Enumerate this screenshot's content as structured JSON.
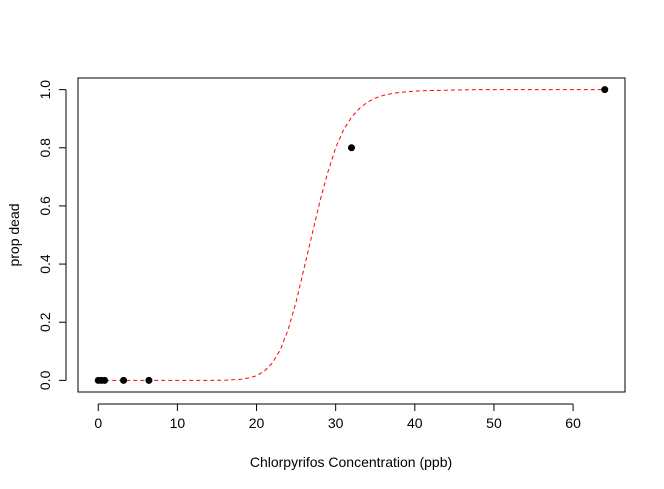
{
  "chart_data": {
    "type": "scatter",
    "title": "",
    "xlabel": "Chlorpyrifos Concentration (ppb)",
    "ylabel": "prop dead",
    "xlim": [
      -2.56,
      66.56
    ],
    "ylim": [
      -0.04,
      1.04
    ],
    "x_ticks": [
      0,
      10,
      20,
      30,
      40,
      50,
      60
    ],
    "y_ticks": [
      0.0,
      0.2,
      0.4,
      0.6,
      0.8,
      1.0
    ],
    "x_tick_labels": [
      "0",
      "10",
      "20",
      "30",
      "40",
      "50",
      "60"
    ],
    "y_tick_labels": [
      "0.0",
      "0.2",
      "0.4",
      "0.6",
      "0.8",
      "1.0"
    ],
    "grid": false,
    "legend": "none",
    "series": [
      {
        "type": "scatter",
        "color": "#000000",
        "x": [
          0,
          0.4,
          0.8,
          3.2,
          6.4,
          32,
          64
        ],
        "y": [
          0,
          0,
          0,
          0,
          0,
          0.8,
          1.0
        ]
      },
      {
        "type": "line",
        "style": "dashed",
        "color": "#ff0000",
        "x": [
          0,
          2,
          4,
          6,
          8,
          10,
          12,
          14,
          16,
          18,
          19,
          20,
          21,
          22,
          23,
          24,
          25,
          26,
          27,
          28,
          29,
          30,
          31,
          32,
          33,
          34,
          35,
          36,
          37,
          38,
          40,
          42,
          44,
          46,
          48,
          50,
          55,
          60,
          64
        ],
        "y": [
          0,
          0,
          0,
          0,
          0,
          0,
          0,
          0,
          0.0005,
          0.004,
          0.008,
          0.016,
          0.032,
          0.06,
          0.105,
          0.175,
          0.27,
          0.385,
          0.5,
          0.615,
          0.715,
          0.8,
          0.862,
          0.905,
          0.935,
          0.957,
          0.971,
          0.98,
          0.986,
          0.99,
          0.995,
          0.997,
          0.998,
          0.999,
          1.0,
          1.0,
          1.0,
          1.0,
          1.0
        ]
      }
    ]
  }
}
